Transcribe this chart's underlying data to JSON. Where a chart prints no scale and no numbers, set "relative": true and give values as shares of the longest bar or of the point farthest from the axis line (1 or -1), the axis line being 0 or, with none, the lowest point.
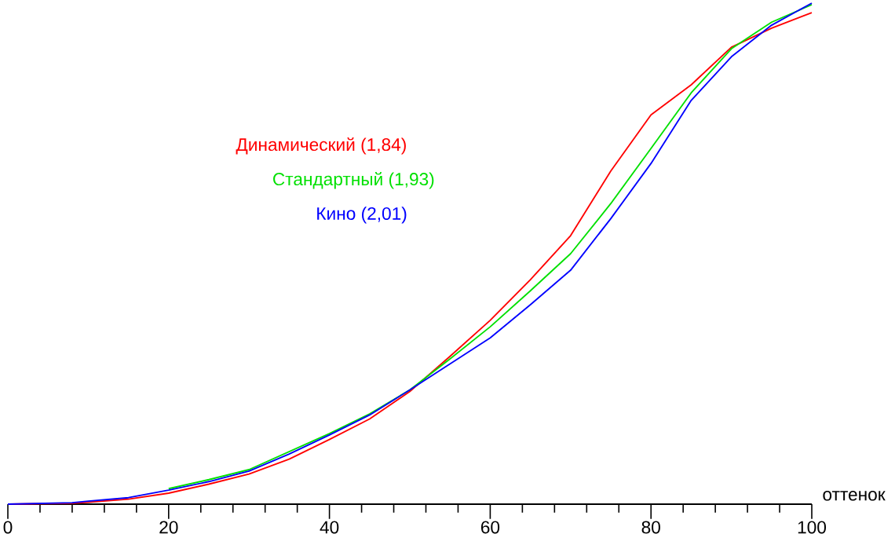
{
  "chart_data": {
    "type": "line",
    "relative": true,
    "xlabel": "оттенок",
    "xlim": [
      0,
      100
    ],
    "xticks": [
      0,
      {
        "value": 4,
        "label": null
      },
      {
        "value": 8,
        "label": null
      },
      {
        "value": 12,
        "label": null
      },
      {
        "value": 16,
        "label": null
      },
      20,
      {
        "value": 24,
        "label": null
      },
      {
        "value": 28,
        "label": null
      },
      {
        "value": 32,
        "label": null
      },
      {
        "value": 36,
        "label": null
      },
      40,
      {
        "value": 44,
        "label": null
      },
      {
        "value": 48,
        "label": null
      },
      {
        "value": 52,
        "label": null
      },
      {
        "value": 56,
        "label": null
      },
      60,
      {
        "value": 64,
        "label": null
      },
      {
        "value": 68,
        "label": null
      },
      {
        "value": 72,
        "label": null
      },
      {
        "value": 76,
        "label": null
      },
      80,
      {
        "value": 84,
        "label": null
      },
      {
        "value": 88,
        "label": null
      },
      {
        "value": 92,
        "label": null
      },
      {
        "value": 96,
        "label": null
      },
      100
    ],
    "x": [
      0,
      8,
      10,
      15,
      20,
      25,
      30,
      35,
      40,
      45,
      50,
      55,
      60,
      65,
      70,
      75,
      80,
      85,
      90,
      95,
      100
    ],
    "grid": false,
    "marker": "none",
    "line_style": "solid",
    "series": [
      {
        "name": "Динамический (1,84)",
        "color": "#ff0000",
        "values": [
          0,
          0.002,
          0.004,
          0.01,
          0.022,
          0.04,
          0.06,
          0.09,
          0.129,
          0.17,
          0.225,
          0.295,
          0.367,
          0.448,
          0.536,
          0.665,
          0.777,
          0.837,
          0.912,
          0.95,
          0.981
        ]
      },
      {
        "name": "Стандартный (1,93)",
        "color": "#00e000",
        "values": [
          null,
          null,
          null,
          null,
          0.031,
          0.049,
          0.069,
          0.105,
          0.141,
          0.18,
          0.228,
          0.29,
          0.354,
          0.426,
          0.5,
          0.6,
          0.71,
          0.821,
          0.909,
          0.962,
          0.997
        ]
      },
      {
        "name": "Кино (2,01)",
        "color": "#0000ff",
        "values": [
          0,
          0.003,
          0.006,
          0.013,
          0.028,
          0.045,
          0.066,
          0.1,
          0.138,
          0.178,
          0.228,
          0.28,
          0.332,
          0.398,
          0.467,
          0.57,
          0.68,
          0.806,
          0.893,
          0.956,
          1
        ]
      }
    ]
  }
}
